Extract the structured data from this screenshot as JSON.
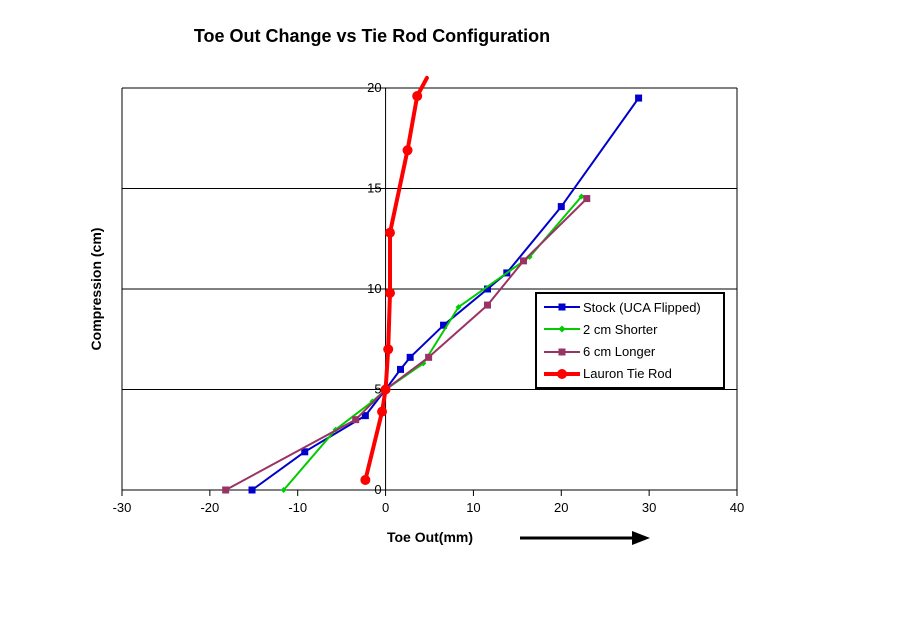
{
  "chart_data": {
    "type": "line",
    "title": "Toe Out Change vs Tie Rod Configuration",
    "xlabel": "Toe Out(mm)",
    "ylabel": "Compression (cm)",
    "xlim": [
      -30,
      40
    ],
    "ylim": [
      0,
      20
    ],
    "x_ticks": [
      -30,
      -20,
      -10,
      0,
      10,
      20,
      30,
      40
    ],
    "y_ticks": [
      0,
      5,
      10,
      15,
      20
    ],
    "grid": "horizontal gridlines at each y tick; vertical value axis drawn at x=0",
    "legend_position": "inside plot, middle right",
    "axis_color": "#000000",
    "series": [
      {
        "name": "Stock (UCA Flipped)",
        "color": "#0000CC",
        "marker": "square",
        "line_width": 2,
        "points": [
          [
            -15.2,
            0
          ],
          [
            -9.2,
            1.9
          ],
          [
            -2.3,
            3.7
          ],
          [
            0,
            5
          ],
          [
            1.7,
            6.0
          ],
          [
            2.8,
            6.6
          ],
          [
            6.6,
            8.2
          ],
          [
            11.6,
            10.0
          ],
          [
            13.8,
            10.8
          ],
          [
            20.0,
            14.1
          ],
          [
            28.8,
            19.5
          ]
        ]
      },
      {
        "name": "2 cm Shorter",
        "color": "#00CC00",
        "marker": "diamond",
        "line_width": 2,
        "points": [
          [
            -11.6,
            0
          ],
          [
            -5.7,
            3.0
          ],
          [
            -1.5,
            4.4
          ],
          [
            0,
            5
          ],
          [
            4.3,
            6.3
          ],
          [
            8.3,
            9.1
          ],
          [
            16.4,
            11.6
          ],
          [
            22.3,
            14.6
          ]
        ]
      },
      {
        "name": "6 cm Longer",
        "color": "#993366",
        "marker": "square",
        "line_width": 2,
        "points": [
          [
            -18.2,
            0
          ],
          [
            -3.4,
            3.5
          ],
          [
            0,
            5
          ],
          [
            4.9,
            6.6
          ],
          [
            11.6,
            9.2
          ],
          [
            15.7,
            11.4
          ],
          [
            22.9,
            14.5
          ]
        ]
      },
      {
        "name": "Lauron Tie Rod",
        "color": "#FF0000",
        "marker": "circle",
        "line_width": 4,
        "points": [
          [
            -2.3,
            0.5
          ],
          [
            -0.4,
            3.9
          ],
          [
            0,
            5
          ],
          [
            0.3,
            7.0
          ],
          [
            0.5,
            9.8
          ],
          [
            0.5,
            12.8
          ],
          [
            2.5,
            16.9
          ],
          [
            3.6,
            19.6
          ]
        ],
        "extra_point": [
          4.7,
          20.5
        ]
      }
    ],
    "annotations": [
      {
        "type": "arrow",
        "note": "black arrow pointing right, beside x-axis title"
      }
    ]
  }
}
